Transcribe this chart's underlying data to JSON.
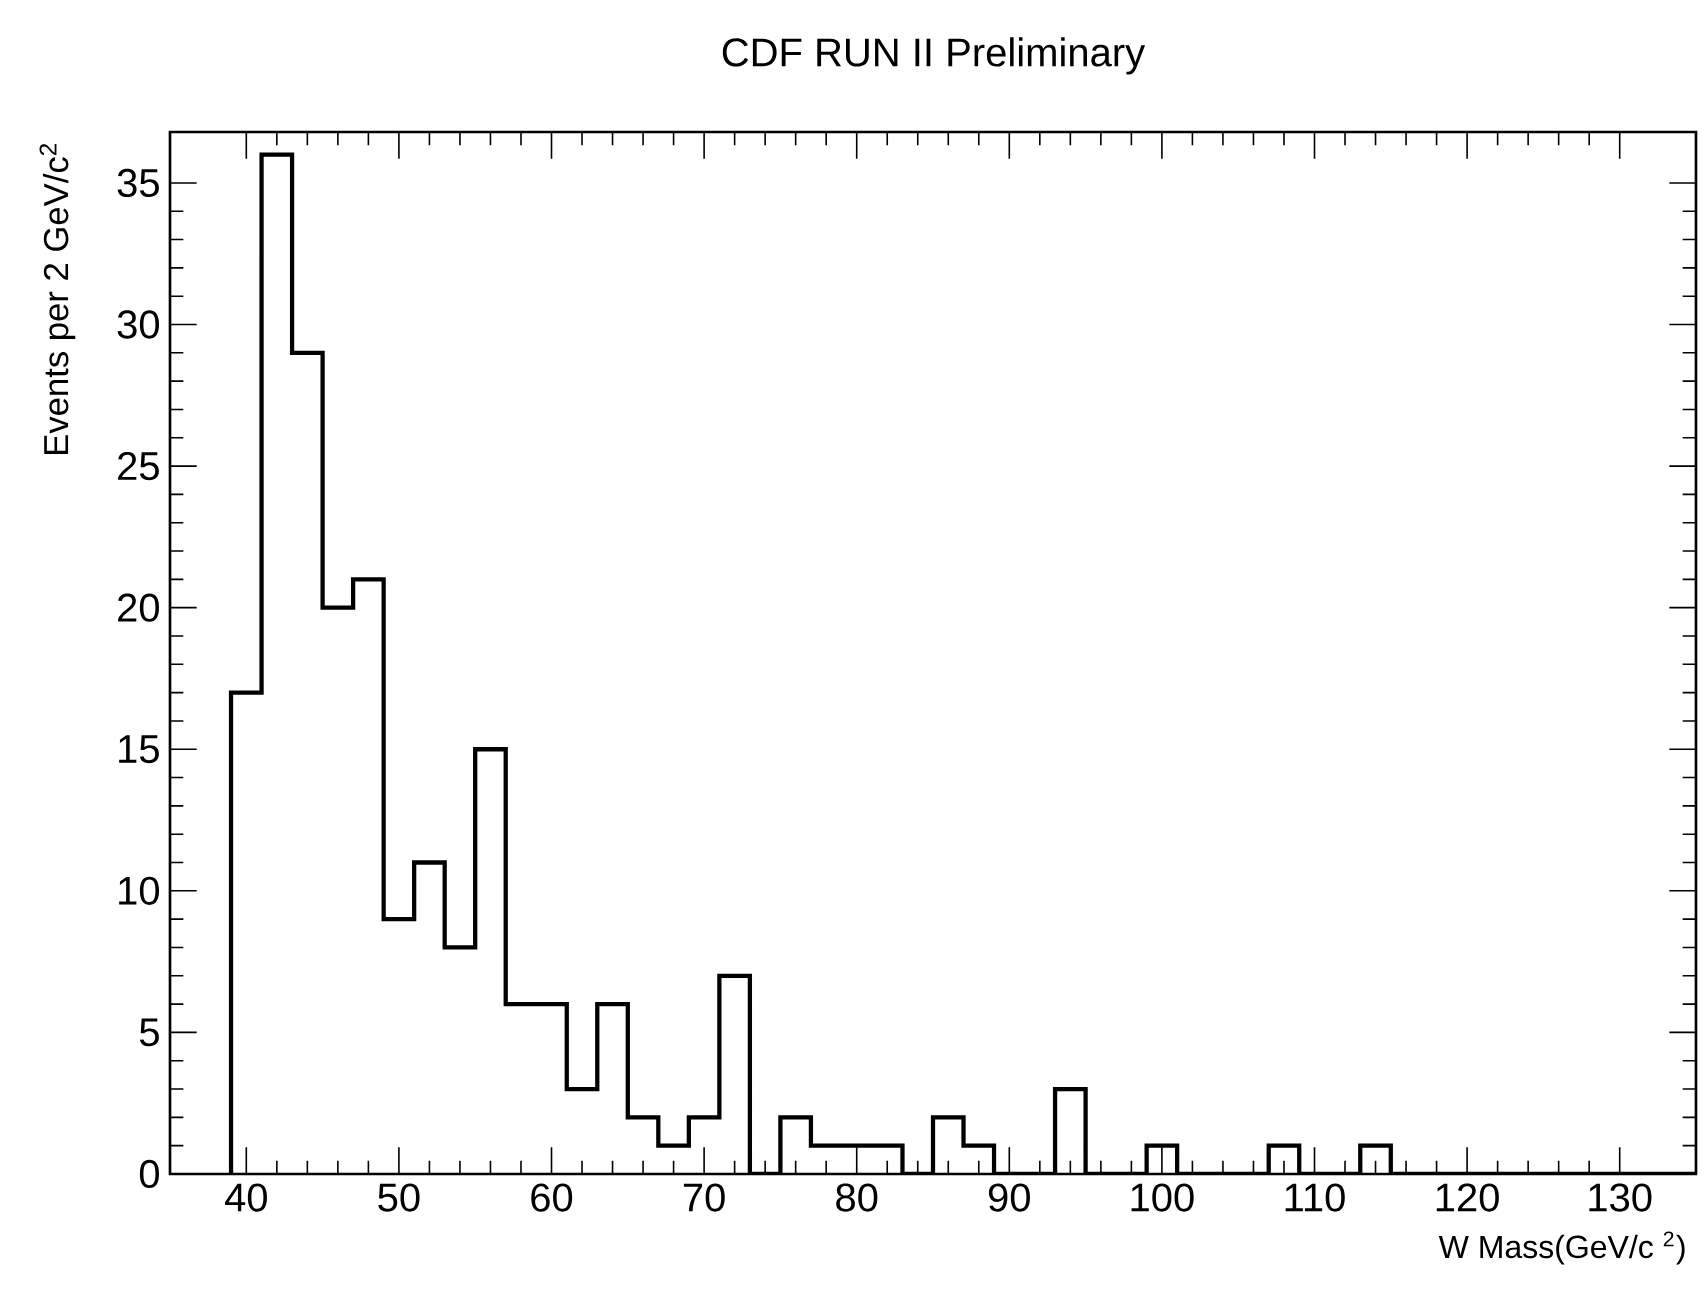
{
  "chart_data": {
    "type": "histogram",
    "title": "CDF RUN II Preliminary",
    "xlabel": "W Mass(GeV/c $^{2}$)",
    "ylabel": "Events per  2 GeV/c$^{2}$",
    "bins": [
      39,
      41,
      43,
      45,
      47,
      49,
      51,
      53,
      55,
      57,
      59,
      61,
      63,
      65,
      67,
      69,
      71,
      73,
      75,
      77,
      79,
      81,
      83,
      85,
      87,
      89,
      91,
      93,
      95,
      97,
      99,
      101,
      103,
      105,
      107,
      109,
      111,
      113,
      115,
      117,
      119,
      121,
      123,
      125,
      127,
      129,
      131,
      133,
      135
    ],
    "values": [
      17,
      36,
      29,
      20,
      21,
      9,
      11,
      8,
      15,
      6,
      6,
      3,
      6,
      2,
      1,
      2,
      7,
      0,
      2,
      1,
      1,
      1,
      0,
      2,
      1,
      0,
      0,
      3,
      0,
      0,
      1,
      0,
      0,
      0,
      1,
      0,
      0,
      1,
      0,
      0,
      0,
      0,
      0,
      0,
      0,
      0,
      0,
      0
    ],
    "color": "#000000",
    "xlim": [
      35,
      135
    ],
    "ylim": [
      0,
      36.8
    ],
    "xticks": [
      40,
      50,
      60,
      70,
      80,
      90,
      100,
      110,
      120,
      130
    ],
    "yticks": [
      0,
      5,
      10,
      15,
      20,
      25,
      30,
      35
    ],
    "grid": false
  }
}
